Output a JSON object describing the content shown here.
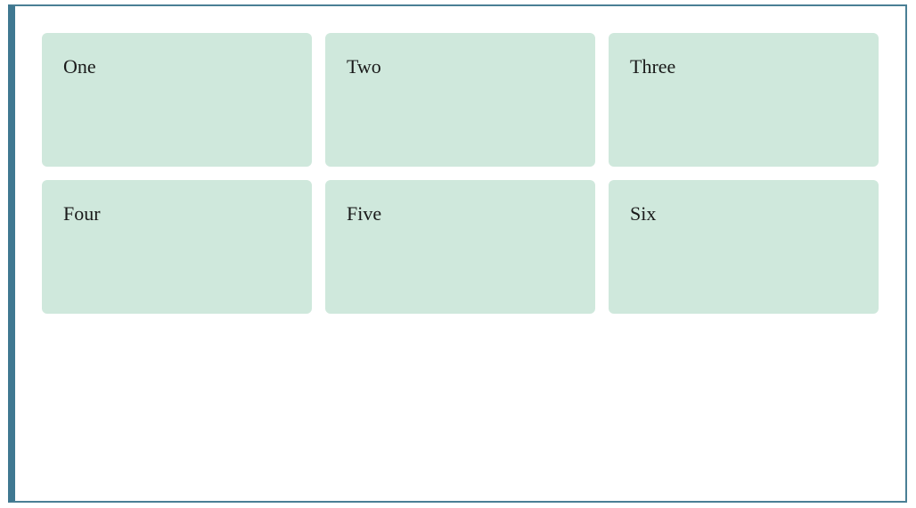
{
  "colors": {
    "frame_border": "#4a7f95",
    "frame_left_accent": "#3f7891",
    "card_background": "#cfe8dc",
    "background": "#ffffff",
    "text": "#1a1a1a"
  },
  "cards": [
    {
      "label": "One"
    },
    {
      "label": "Two"
    },
    {
      "label": "Three"
    },
    {
      "label": "Four"
    },
    {
      "label": "Five"
    },
    {
      "label": "Six"
    }
  ]
}
